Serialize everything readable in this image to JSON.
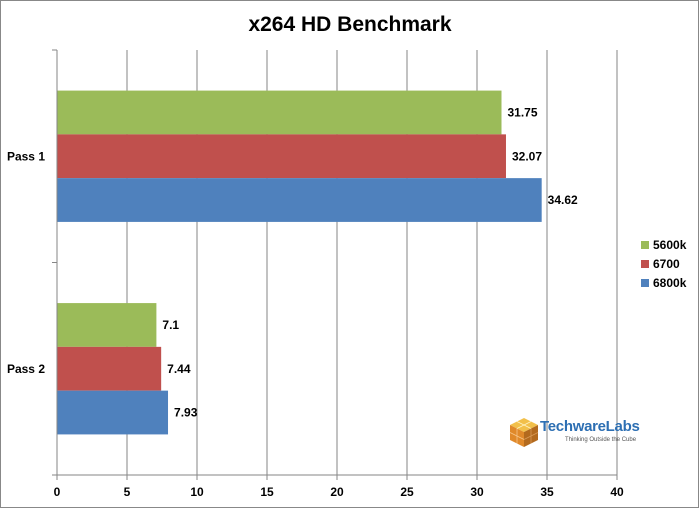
{
  "chart_data": {
    "type": "bar",
    "orientation": "horizontal",
    "title": "x264 HD Benchmark",
    "xlabel": "",
    "ylabel": "",
    "categories": [
      "Pass 1",
      "Pass 2"
    ],
    "series": [
      {
        "name": "5600k",
        "color": "#9bbb59",
        "values": [
          31.75,
          7.1
        ]
      },
      {
        "name": "6700",
        "color": "#c0504d",
        "values": [
          32.07,
          7.44
        ]
      },
      {
        "name": "6800k",
        "color": "#4f81bd",
        "values": [
          34.62,
          7.93
        ]
      }
    ],
    "xlim": [
      0,
      40
    ],
    "xticks": [
      0,
      5,
      10,
      15,
      20,
      25,
      30,
      35,
      40
    ],
    "grid": true,
    "legend_position": "right"
  },
  "watermark": {
    "brand": "TechwareLabs",
    "tagline": "Thinking Outside the Cube"
  }
}
